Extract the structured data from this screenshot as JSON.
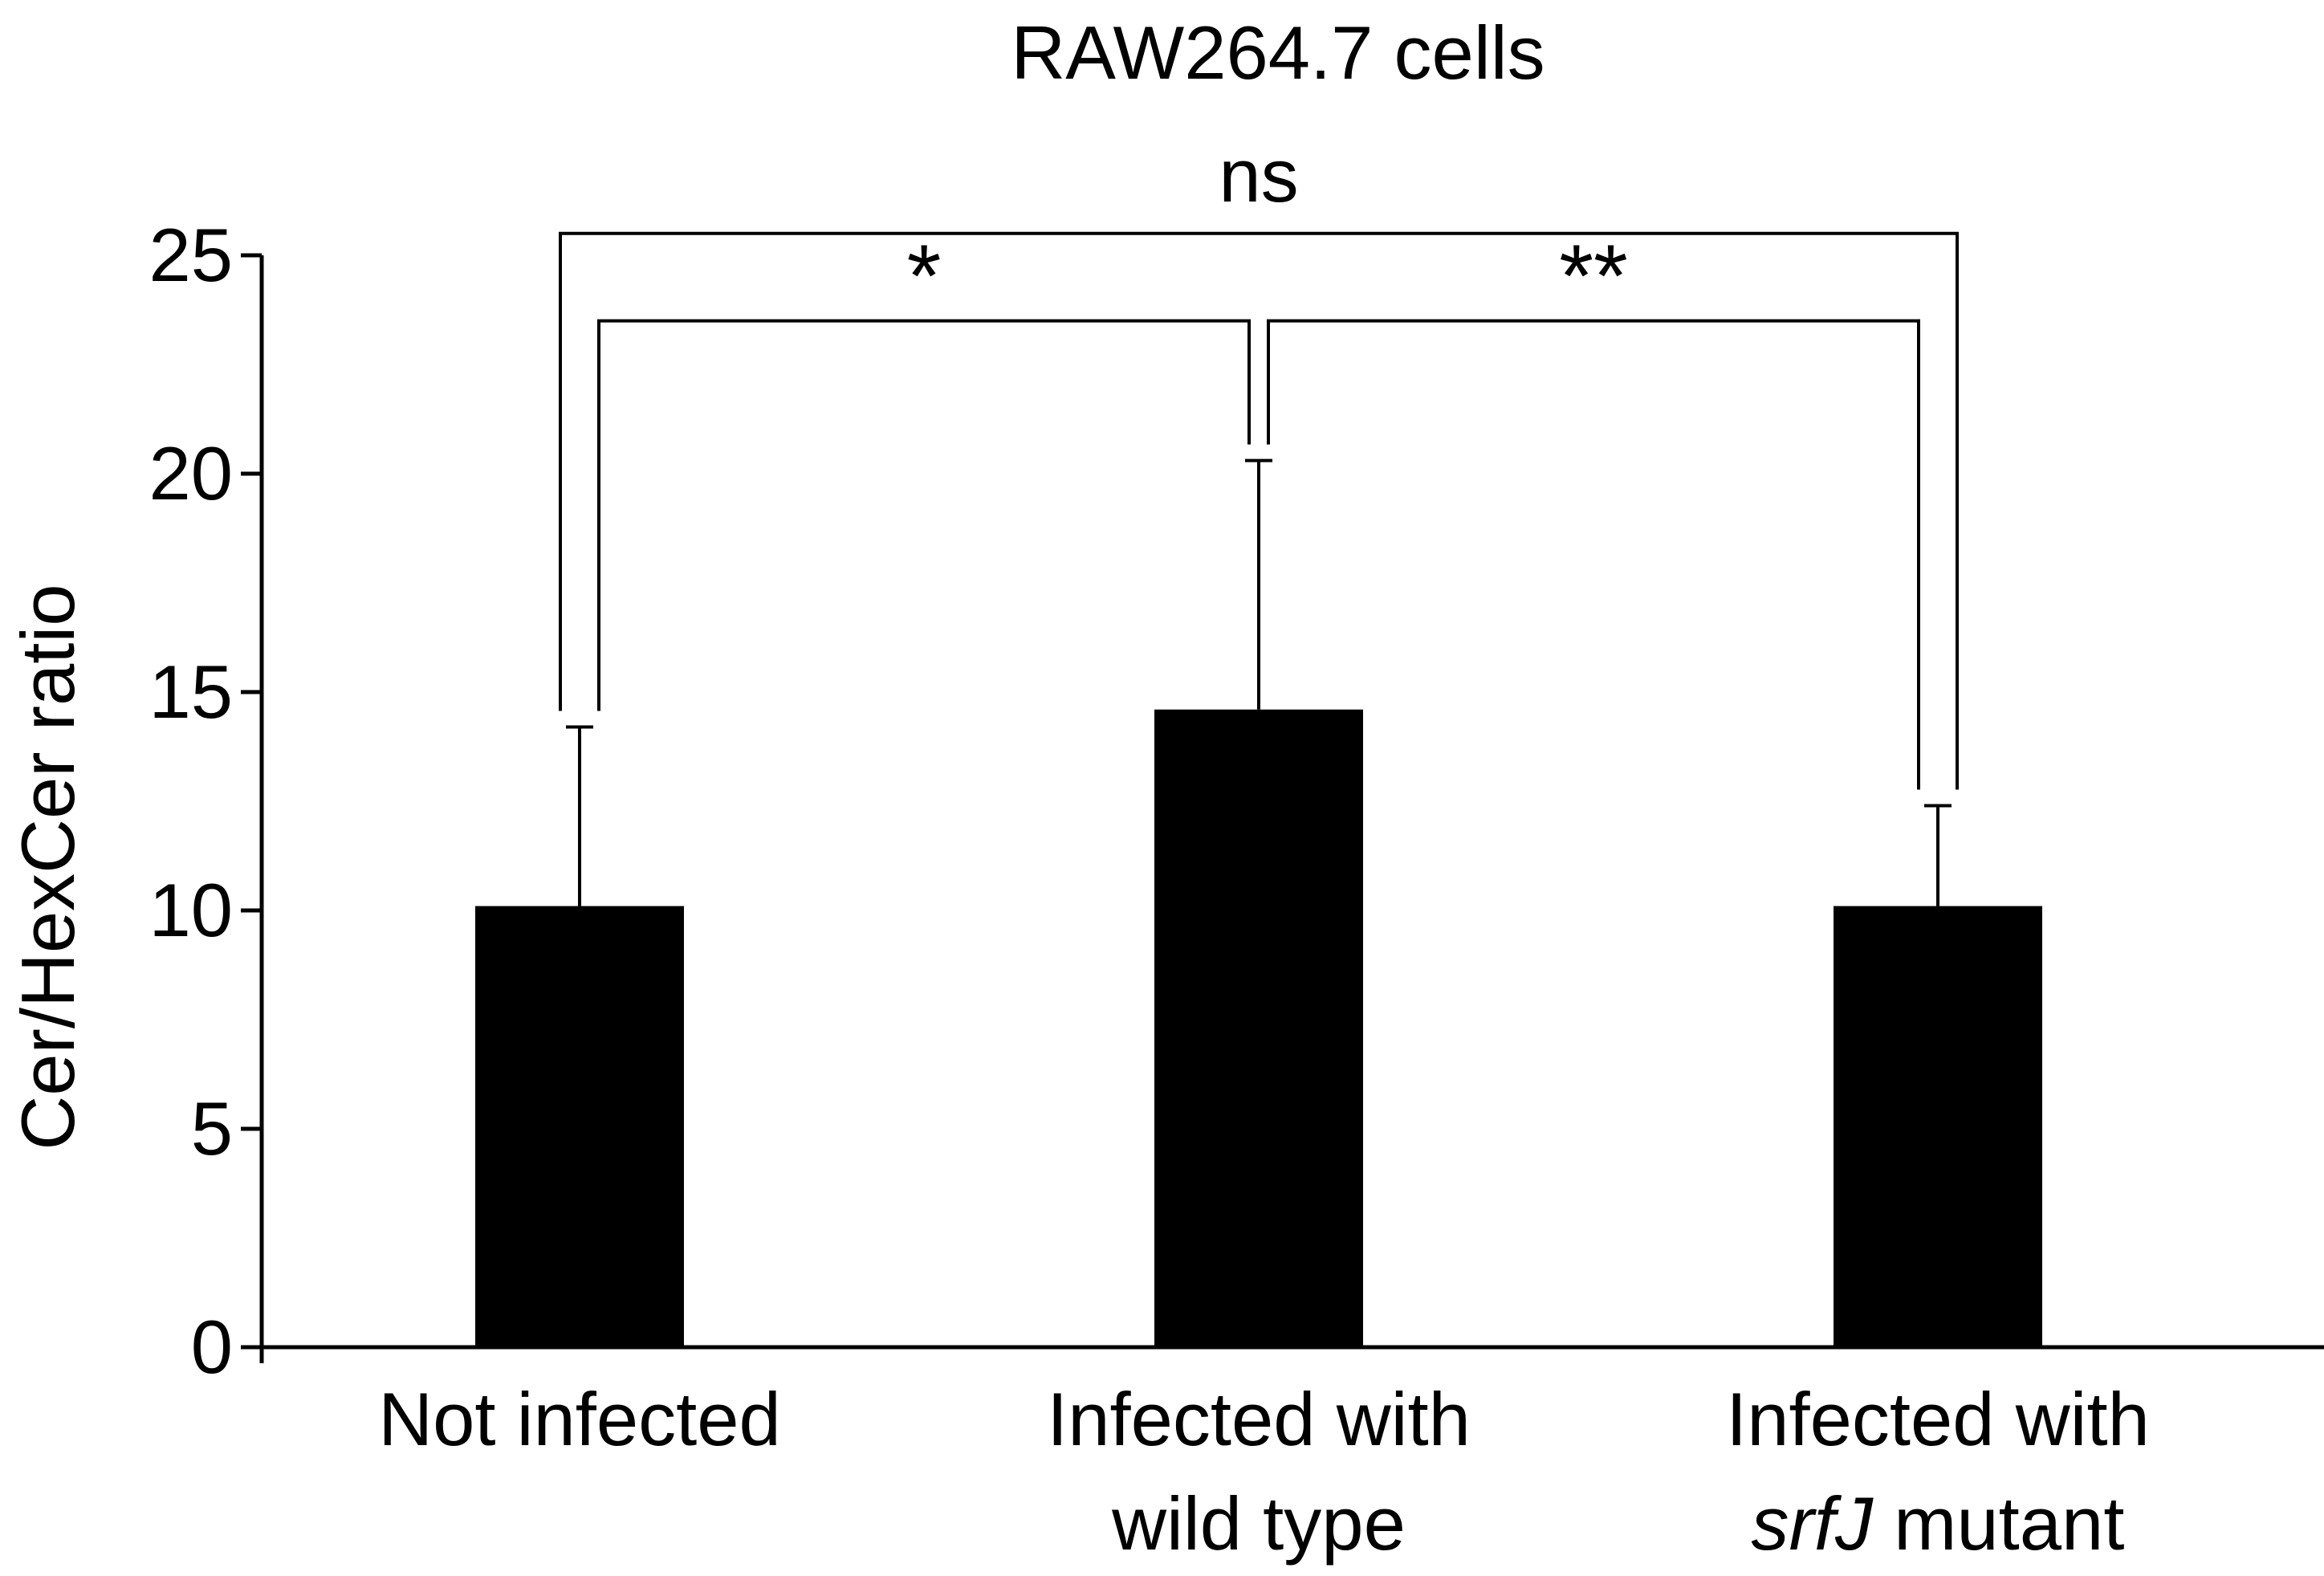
{
  "chart_data": {
    "type": "bar",
    "title": "RAW264.7 cells",
    "xlabel": "",
    "ylabel": "Cer/HexCer ratio",
    "ylim": [
      0,
      25
    ],
    "yticks": [
      0,
      5,
      10,
      15,
      20,
      25
    ],
    "grid": false,
    "categories": [
      {
        "lines": [
          [
            {
              "text": "Not infected",
              "italic": false
            }
          ]
        ]
      },
      {
        "lines": [
          [
            {
              "text": "Infected with",
              "italic": false
            }
          ],
          [
            {
              "text": "wild type",
              "italic": false
            }
          ]
        ]
      },
      {
        "lines": [
          [
            {
              "text": "Infected with",
              "italic": false
            }
          ],
          [
            {
              "text": "srfJ",
              "italic": true
            },
            {
              "text": " mutant",
              "italic": false
            }
          ]
        ]
      }
    ],
    "values": [
      10.1,
      14.6,
      10.1
    ],
    "error_upper": [
      14.2,
      20.3,
      12.4
    ],
    "bar_color": "#000000",
    "significance": [
      {
        "from": 0,
        "to": 2,
        "label": "ns",
        "level": 25.5
      },
      {
        "from": 0,
        "to": 1,
        "label": "*",
        "level": 23.5
      },
      {
        "from": 1,
        "to": 2,
        "label": "**",
        "level": 23.5
      }
    ]
  }
}
